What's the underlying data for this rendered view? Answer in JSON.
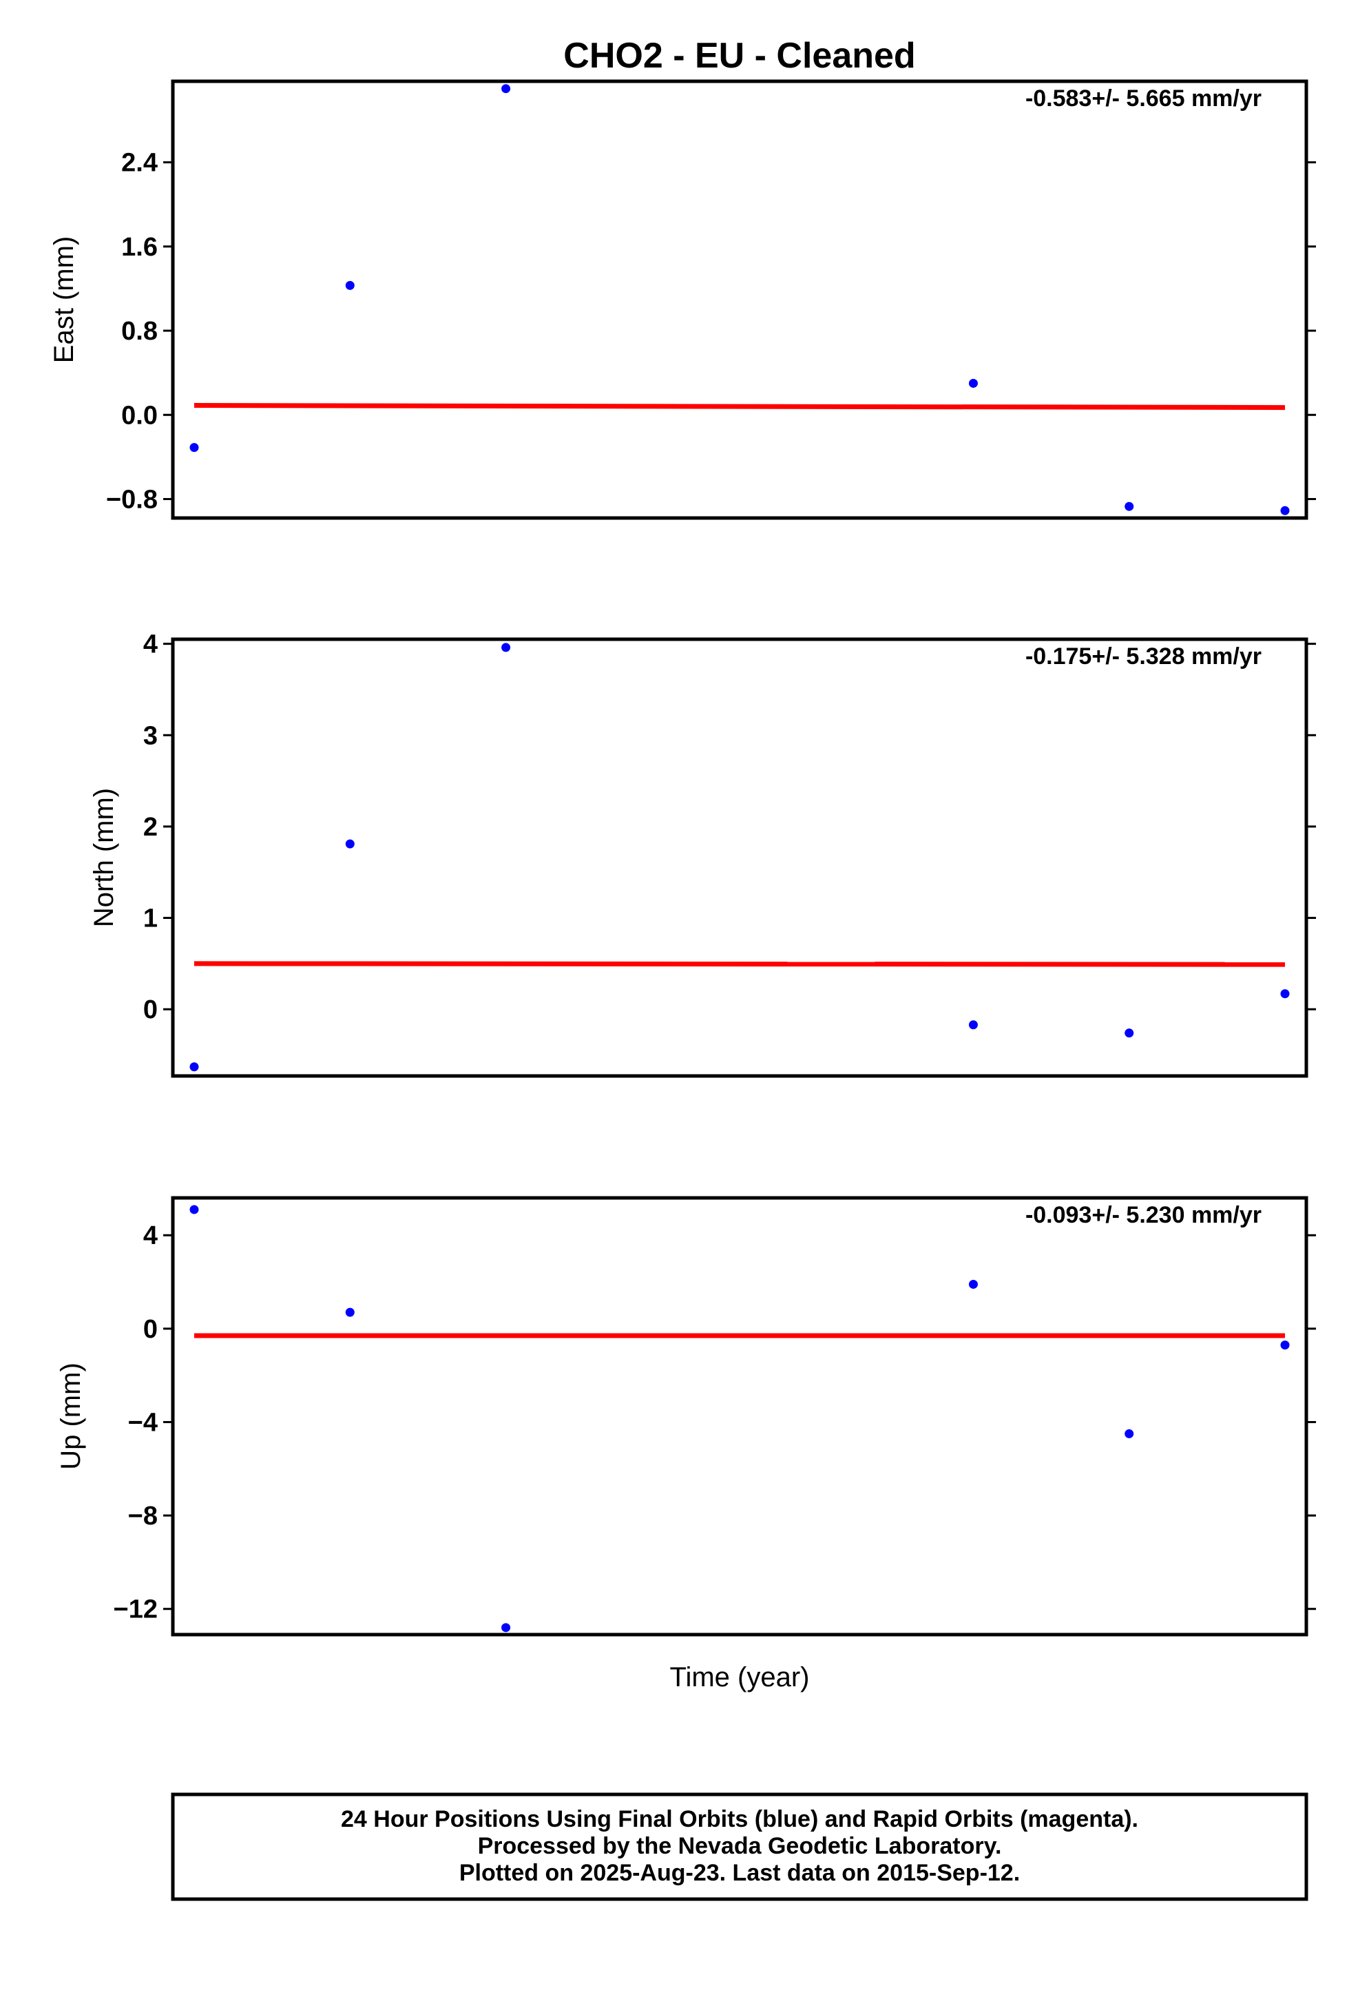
{
  "chart_data": [
    {
      "type": "scatter",
      "title": "CHO2  - EU - Cleaned",
      "ylabel": "East (mm)",
      "xlabel": "",
      "rate_text": "-0.583+/- 5.665 mm/yr",
      "ylim": [
        -0.98,
        3.17
      ],
      "yticks": [
        2.4,
        1.6,
        0.8,
        0.0,
        -0.8
      ],
      "ytick_labels": [
        "2.4",
        "1.6",
        "0.8",
        "0.0",
        "−0.8"
      ],
      "series": [
        {
          "color": "#0000ff",
          "x": [
            0,
            1,
            2,
            5,
            6,
            7
          ],
          "values": [
            -0.31,
            1.23,
            3.1,
            0.3,
            -0.87,
            -0.91
          ]
        },
        {
          "color": "#ff0000",
          "style": "line",
          "x": [
            0,
            7
          ],
          "values": [
            0.09,
            0.07
          ]
        }
      ]
    },
    {
      "type": "scatter",
      "ylabel": "North (mm)",
      "xlabel": "",
      "rate_text": "-0.175+/- 5.328 mm/yr",
      "ylim": [
        -0.73,
        4.05
      ],
      "yticks": [
        4,
        3,
        2,
        1,
        0
      ],
      "ytick_labels": [
        "4",
        "3",
        "2",
        "1",
        "0"
      ],
      "series": [
        {
          "color": "#0000ff",
          "x": [
            0,
            1,
            2,
            5,
            6,
            7
          ],
          "values": [
            -0.63,
            1.81,
            3.96,
            -0.17,
            -0.26,
            0.17
          ]
        },
        {
          "color": "#ff0000",
          "style": "line",
          "x": [
            0,
            7
          ],
          "values": [
            0.5,
            0.49
          ]
        }
      ]
    },
    {
      "type": "scatter",
      "ylabel": "Up (mm)",
      "xlabel": "Time (year)",
      "rate_text": "-0.093+/- 5.230 mm/yr",
      "ylim": [
        -13.1,
        5.6
      ],
      "yticks": [
        4,
        0,
        -4,
        -8,
        -12
      ],
      "ytick_labels": [
        "4",
        "0",
        "−4",
        "−8",
        "−12"
      ],
      "series": [
        {
          "color": "#0000ff",
          "x": [
            0,
            1,
            2,
            5,
            6,
            7
          ],
          "values": [
            5.1,
            0.7,
            -12.8,
            1.9,
            -4.5,
            -0.7
          ]
        },
        {
          "color": "#ff0000",
          "style": "line",
          "x": [
            0,
            7
          ],
          "values": [
            -0.3,
            -0.3
          ]
        }
      ]
    }
  ],
  "footer": {
    "line1": "24 Hour Positions Using Final Orbits (blue) and Rapid Orbits (magenta).",
    "line2": "Processed by the Nevada Geodetic Laboratory.",
    "line3": "Plotted on 2025-Aug-23. Last data on 2015-Sep-12."
  }
}
